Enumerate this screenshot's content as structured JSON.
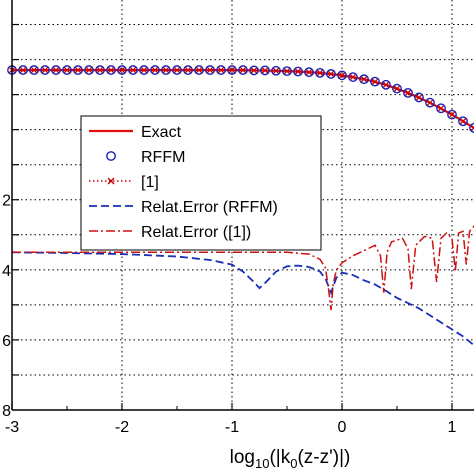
{
  "chart_data": {
    "type": "line",
    "xlabel": {
      "prefix": "log",
      "sub1": "10",
      "mid": "(|k",
      "sub2": "0",
      "suffix": "(z-z')|)"
    },
    "xlim": [
      -3,
      1.2
    ],
    "x_ticks": [
      "-3",
      "-2",
      "-1",
      "0",
      "1"
    ],
    "y_tick_labels": [
      {
        "text": "2",
        "value": -2
      },
      {
        "text": "4",
        "value": -4
      },
      {
        "text": "6",
        "value": -6
      },
      {
        "text": "8",
        "value": -8
      }
    ],
    "ylim": [
      -8,
      3.7
    ],
    "grid": true,
    "legend_position": "center-left",
    "colors": {
      "exact": "#e01010",
      "rffm": "#1f1fb0",
      "ref": "#cc0000",
      "err_rffm": "#1a2fb8",
      "err_ref": "#cc1111",
      "grid": "#000000"
    },
    "series": [
      {
        "name": "Exact",
        "style": "solid",
        "x": [
          -3.0,
          -2.6,
          -2.2,
          -1.8,
          -1.4,
          -1.2,
          -1.0,
          -0.8,
          -0.6,
          -0.4,
          -0.2,
          0.0,
          0.2,
          0.4,
          0.6,
          0.8,
          1.0,
          1.2
        ],
        "y": [
          1.7,
          1.7,
          1.7,
          1.7,
          1.7,
          1.7,
          1.7,
          1.69,
          1.68,
          1.66,
          1.62,
          1.55,
          1.44,
          1.28,
          1.05,
          0.77,
          0.43,
          0.05
        ]
      },
      {
        "name": "RFFM",
        "style": "circle",
        "x": [
          -3.0,
          -2.9,
          -2.8,
          -2.7,
          -2.6,
          -2.5,
          -2.4,
          -2.3,
          -2.2,
          -2.1,
          -2.0,
          -1.9,
          -1.8,
          -1.7,
          -1.6,
          -1.5,
          -1.4,
          -1.3,
          -1.2,
          -1.1,
          -1.0,
          -0.9,
          -0.8,
          -0.7,
          -0.6,
          -0.5,
          -0.4,
          -0.3,
          -0.2,
          -0.1,
          0.0,
          0.1,
          0.2,
          0.3,
          0.4,
          0.5,
          0.6,
          0.7,
          0.8,
          0.9,
          1.0,
          1.1,
          1.2
        ],
        "y": [
          1.7,
          1.7,
          1.7,
          1.7,
          1.7,
          1.7,
          1.7,
          1.7,
          1.7,
          1.7,
          1.7,
          1.7,
          1.7,
          1.7,
          1.7,
          1.7,
          1.7,
          1.7,
          1.7,
          1.7,
          1.7,
          1.7,
          1.69,
          1.69,
          1.68,
          1.67,
          1.66,
          1.64,
          1.62,
          1.59,
          1.55,
          1.5,
          1.44,
          1.37,
          1.28,
          1.17,
          1.05,
          0.92,
          0.77,
          0.61,
          0.43,
          0.24,
          0.05
        ]
      },
      {
        "name": "[1]",
        "style": "dotted-x"
      },
      {
        "name": "Relat.Error (RFFM)",
        "style": "dashed",
        "x": [
          -3.0,
          -2.5,
          -2.0,
          -1.5,
          -1.2,
          -1.0,
          -0.9,
          -0.8,
          -0.75,
          -0.7,
          -0.6,
          -0.5,
          -0.4,
          -0.3,
          -0.25,
          -0.2,
          -0.15,
          -0.1,
          -0.05,
          0.0,
          0.1,
          0.2,
          0.3,
          0.4,
          0.5,
          0.6,
          0.7,
          0.8,
          0.9,
          1.0,
          1.1,
          1.2
        ],
        "y": [
          -3.5,
          -3.52,
          -3.55,
          -3.62,
          -3.72,
          -3.85,
          -4.05,
          -4.35,
          -4.52,
          -4.38,
          -4.05,
          -3.9,
          -3.88,
          -3.92,
          -3.98,
          -4.05,
          -4.25,
          -4.65,
          -4.22,
          -4.08,
          -4.15,
          -4.3,
          -4.42,
          -4.6,
          -4.8,
          -4.95,
          -5.1,
          -5.3,
          -5.5,
          -5.7,
          -5.9,
          -6.15
        ]
      },
      {
        "name": "Relat.Error ([1])",
        "style": "dashdot",
        "x": [
          -3.0,
          -2.5,
          -2.0,
          -1.5,
          -1.0,
          -0.5,
          -0.3,
          -0.2,
          -0.15,
          -0.12,
          -0.1,
          -0.08,
          -0.05,
          0.0,
          0.1,
          0.2,
          0.3,
          0.35,
          0.38,
          0.41,
          0.45,
          0.55,
          0.6,
          0.63,
          0.67,
          0.75,
          0.82,
          0.86,
          0.9,
          0.95,
          1.0,
          1.03,
          1.06,
          1.1,
          1.13,
          1.16,
          1.2
        ],
        "y": [
          -3.5,
          -3.5,
          -3.5,
          -3.5,
          -3.5,
          -3.5,
          -3.55,
          -3.7,
          -3.95,
          -4.6,
          -5.15,
          -4.4,
          -4.0,
          -3.8,
          -3.6,
          -3.45,
          -3.3,
          -3.6,
          -4.65,
          -3.5,
          -3.2,
          -3.1,
          -3.4,
          -4.55,
          -3.3,
          -3.05,
          -3.1,
          -4.35,
          -3.1,
          -2.95,
          -3.1,
          -4.05,
          -2.95,
          -2.9,
          -3.85,
          -2.9,
          -2.75
        ]
      }
    ]
  }
}
